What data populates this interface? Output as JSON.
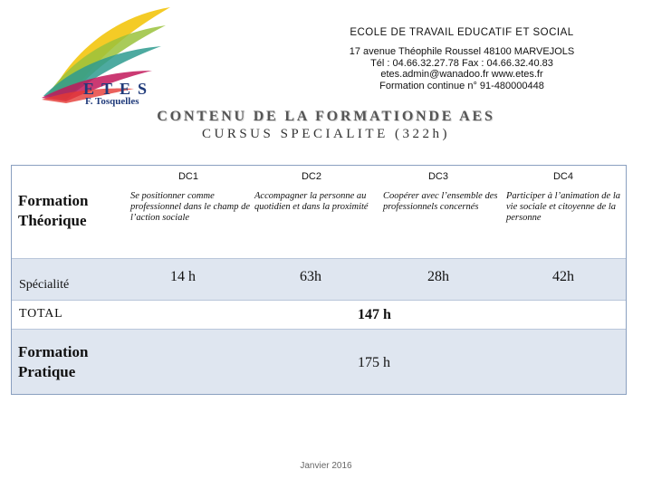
{
  "logo": {
    "title": "ETES",
    "subtitle": "F. Tosquelles"
  },
  "organization": {
    "name": "ECOLE DE TRAVAIL EDUCATIF ET SOCIAL",
    "address": "17 avenue Théophile Roussel   48100 MARVEJOLS",
    "phone": "Tél : 04.66.32.27.78   Fax : 04.66.32.40.83",
    "web": "etes.admin@wanadoo.fr    www.etes.fr",
    "formation": "Formation continue n° 91-480000448"
  },
  "title": "CONTENU DE LA FORMATIONDE AES",
  "subtitle": "CURSUS SPECIALITE  (322h)",
  "table": {
    "headers": [
      "DC1",
      "DC2",
      "DC3",
      "DC4"
    ],
    "formation_theorique_label": "Formation Théorique",
    "descriptions": [
      "Se positionner comme professionnel dans le champ de l’action sociale",
      "Accompagner la personne au quotidien et dans la proximité",
      "Coopérer avec l’ensemble des professionnels concernés",
      "Participer à l’animation de la vie sociale et citoyenne de la personne"
    ],
    "specialite_label": "Spécialité",
    "specialite_hours": [
      "14 h",
      "63h",
      "28h",
      "42h"
    ],
    "total_label": "TOTAL",
    "total_value": "147 h",
    "pratique_label": "Formation Pratique",
    "pratique_value": "175 h"
  },
  "footer": "Janvier 2016"
}
